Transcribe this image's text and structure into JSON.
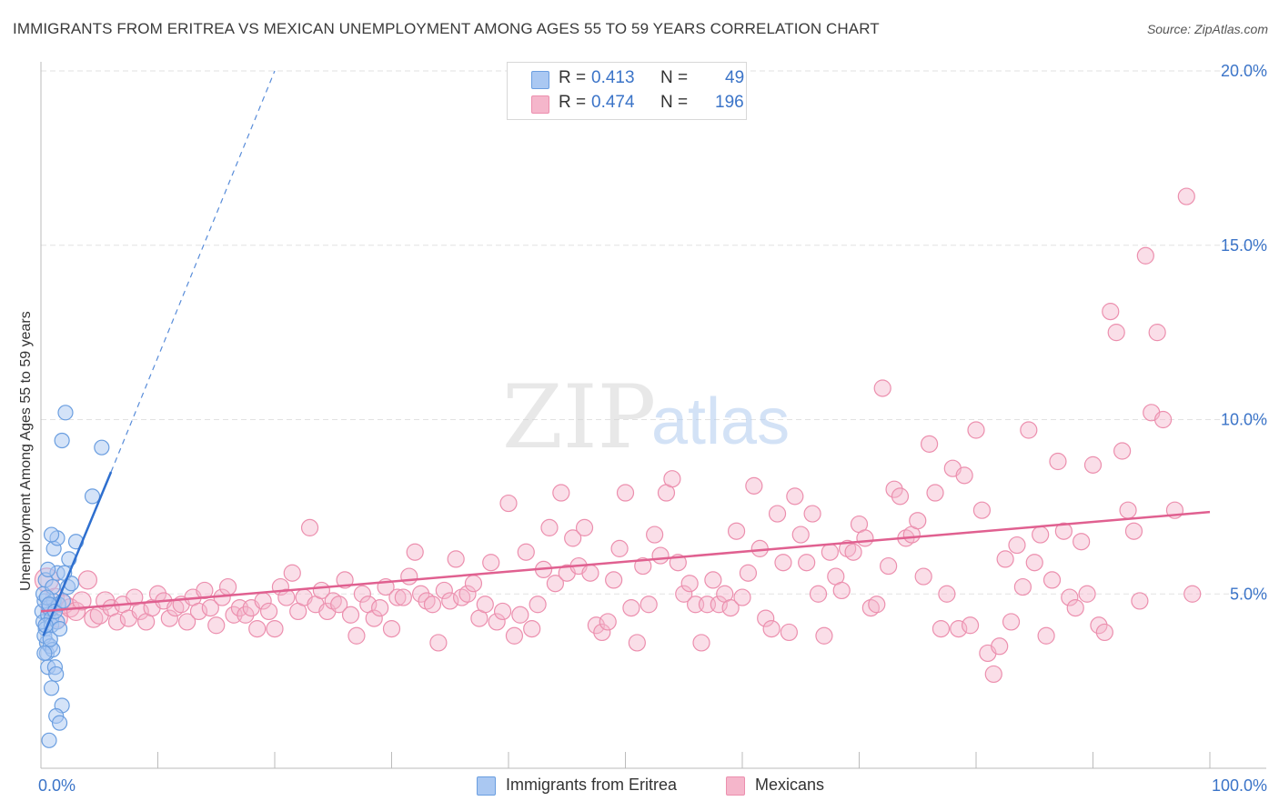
{
  "title": "IMMIGRANTS FROM ERITREA VS MEXICAN UNEMPLOYMENT AMONG AGES 55 TO 59 YEARS CORRELATION CHART",
  "source": "Source: ZipAtlas.com",
  "colors": {
    "blue_fill": "#aac8f2",
    "blue_stroke": "#6a9ee0",
    "blue_line": "#2e6fcf",
    "pink_fill": "#f5b6cb",
    "pink_stroke": "#ec8fae",
    "pink_line": "#e06090",
    "axis_label": "#3b74c8",
    "grid": "#e2e2e2"
  },
  "legend_top": {
    "rows": [
      {
        "r_label": "R =",
        "r_value": "0.413",
        "n_label": "N =",
        "n_value": "49"
      },
      {
        "r_label": "R =",
        "r_value": "0.474",
        "n_label": "N =",
        "n_value": "196"
      }
    ]
  },
  "legend_bottom": [
    "Immigrants from Eritrea",
    "Mexicans"
  ],
  "watermark": {
    "zip": "ZIP",
    "atlas": "atlas"
  },
  "chart_data": {
    "type": "scatter",
    "title": "IMMIGRANTS FROM ERITREA VS MEXICAN UNEMPLOYMENT AMONG AGES 55 TO 59 YEARS CORRELATION CHART",
    "xlabel": "",
    "ylabel": "Unemployment Among Ages 55 to 59 years",
    "xlim": [
      0,
      100
    ],
    "ylim": [
      0,
      20
    ],
    "x_tick_labels": [
      "0.0%",
      "100.0%"
    ],
    "y_ticks": [
      5,
      10,
      15,
      20
    ],
    "y_tick_labels": [
      "5.0%",
      "10.0%",
      "15.0%",
      "20.0%"
    ],
    "series": [
      {
        "name": "Immigrants from Eritrea",
        "color": "blue",
        "r": 0.413,
        "n": 49,
        "trend": {
          "x0": 0.2,
          "y0": 3.8,
          "x1": 6.0,
          "y1": 8.5,
          "dash_to_x": 20.0,
          "dash_to_y": 20.0
        },
        "points": [
          [
            0.1,
            4.5
          ],
          [
            0.2,
            4.2
          ],
          [
            0.3,
            4.8
          ],
          [
            0.4,
            4.0
          ],
          [
            0.5,
            3.6
          ],
          [
            0.6,
            4.4
          ],
          [
            0.2,
            5.0
          ],
          [
            0.4,
            5.4
          ],
          [
            0.7,
            4.6
          ],
          [
            0.9,
            4.3
          ],
          [
            0.3,
            3.8
          ],
          [
            0.5,
            3.3
          ],
          [
            0.8,
            3.5
          ],
          [
            1.0,
            3.4
          ],
          [
            0.6,
            2.9
          ],
          [
            1.2,
            2.9
          ],
          [
            1.3,
            2.7
          ],
          [
            0.9,
            2.3
          ],
          [
            1.8,
            1.8
          ],
          [
            1.3,
            1.5
          ],
          [
            1.6,
            1.3
          ],
          [
            0.7,
            0.8
          ],
          [
            0.9,
            4.1
          ],
          [
            1.4,
            4.2
          ],
          [
            1.1,
            4.8
          ],
          [
            1.5,
            4.7
          ],
          [
            1.0,
            5.2
          ],
          [
            1.4,
            5.6
          ],
          [
            2.3,
            5.2
          ],
          [
            2.0,
            5.6
          ],
          [
            2.4,
            6.0
          ],
          [
            1.1,
            6.3
          ],
          [
            1.4,
            6.6
          ],
          [
            0.9,
            6.7
          ],
          [
            3.0,
            6.5
          ],
          [
            4.4,
            7.8
          ],
          [
            5.2,
            9.2
          ],
          [
            1.8,
            9.4
          ],
          [
            2.1,
            10.2
          ],
          [
            0.5,
            4.9
          ],
          [
            0.7,
            4.7
          ],
          [
            1.2,
            4.5
          ],
          [
            0.4,
            4.1
          ],
          [
            0.8,
            3.7
          ],
          [
            1.6,
            4.0
          ],
          [
            0.3,
            3.3
          ],
          [
            1.9,
            4.8
          ],
          [
            2.6,
            5.3
          ],
          [
            0.6,
            5.7
          ]
        ]
      },
      {
        "name": "Mexicans",
        "color": "pink",
        "r": 0.474,
        "n": 196,
        "trend": {
          "x0": 0.0,
          "y0": 4.5,
          "x1": 100.0,
          "y1": 7.35
        },
        "points": [
          [
            0.5,
            5.4
          ],
          [
            0.8,
            4.6
          ],
          [
            1.2,
            4.9
          ],
          [
            1.5,
            4.3
          ],
          [
            2.0,
            4.7
          ],
          [
            2.5,
            4.6
          ],
          [
            3.0,
            4.5
          ],
          [
            3.5,
            4.8
          ],
          [
            4.0,
            5.4
          ],
          [
            4.5,
            4.3
          ],
          [
            5.0,
            4.4
          ],
          [
            5.5,
            4.8
          ],
          [
            6.0,
            4.6
          ],
          [
            6.5,
            4.2
          ],
          [
            7.0,
            4.7
          ],
          [
            7.5,
            4.3
          ],
          [
            8.0,
            4.9
          ],
          [
            8.5,
            4.5
          ],
          [
            9.0,
            4.2
          ],
          [
            9.5,
            4.6
          ],
          [
            10.0,
            5.0
          ],
          [
            10.5,
            4.8
          ],
          [
            11.0,
            4.3
          ],
          [
            11.5,
            4.6
          ],
          [
            12.0,
            4.7
          ],
          [
            12.5,
            4.2
          ],
          [
            13.0,
            4.9
          ],
          [
            13.5,
            4.5
          ],
          [
            14.0,
            5.1
          ],
          [
            14.5,
            4.6
          ],
          [
            15.0,
            4.1
          ],
          [
            15.5,
            4.9
          ],
          [
            16.0,
            5.2
          ],
          [
            16.5,
            4.4
          ],
          [
            17.0,
            4.6
          ],
          [
            17.5,
            4.4
          ],
          [
            18.0,
            4.6
          ],
          [
            18.5,
            4.0
          ],
          [
            19.0,
            4.8
          ],
          [
            19.5,
            4.5
          ],
          [
            20.0,
            4.0
          ],
          [
            20.5,
            5.2
          ],
          [
            21.0,
            4.9
          ],
          [
            21.5,
            5.6
          ],
          [
            22.0,
            4.5
          ],
          [
            22.5,
            4.9
          ],
          [
            23.0,
            6.9
          ],
          [
            23.5,
            4.7
          ],
          [
            24.0,
            5.1
          ],
          [
            24.5,
            4.5
          ],
          [
            25.0,
            4.8
          ],
          [
            25.5,
            4.7
          ],
          [
            26.0,
            5.4
          ],
          [
            26.5,
            4.4
          ],
          [
            27.0,
            3.8
          ],
          [
            27.5,
            5.0
          ],
          [
            28.0,
            4.7
          ],
          [
            28.5,
            4.3
          ],
          [
            29.0,
            4.6
          ],
          [
            29.5,
            5.2
          ],
          [
            30.0,
            4.0
          ],
          [
            30.5,
            4.9
          ],
          [
            31.0,
            4.9
          ],
          [
            31.5,
            5.5
          ],
          [
            32.0,
            6.2
          ],
          [
            32.5,
            5.0
          ],
          [
            33.0,
            4.8
          ],
          [
            33.5,
            4.7
          ],
          [
            34.0,
            3.6
          ],
          [
            34.5,
            5.1
          ],
          [
            35.0,
            4.8
          ],
          [
            35.5,
            6.0
          ],
          [
            36.0,
            4.9
          ],
          [
            36.5,
            5.0
          ],
          [
            37.0,
            5.3
          ],
          [
            37.5,
            4.3
          ],
          [
            38.0,
            4.7
          ],
          [
            38.5,
            5.9
          ],
          [
            39.0,
            4.2
          ],
          [
            39.5,
            4.5
          ],
          [
            40.0,
            7.6
          ],
          [
            40.5,
            3.8
          ],
          [
            41.0,
            4.4
          ],
          [
            41.5,
            6.2
          ],
          [
            42.0,
            4.0
          ],
          [
            42.5,
            4.7
          ],
          [
            43.0,
            5.7
          ],
          [
            43.5,
            6.9
          ],
          [
            44.0,
            5.3
          ],
          [
            44.5,
            7.9
          ],
          [
            45.0,
            5.6
          ],
          [
            45.5,
            6.6
          ],
          [
            46.0,
            5.8
          ],
          [
            46.5,
            6.9
          ],
          [
            47.0,
            5.6
          ],
          [
            47.5,
            4.1
          ],
          [
            48.0,
            3.9
          ],
          [
            48.5,
            4.2
          ],
          [
            49.0,
            5.4
          ],
          [
            49.5,
            6.3
          ],
          [
            50.0,
            7.9
          ],
          [
            50.5,
            4.6
          ],
          [
            51.0,
            3.6
          ],
          [
            51.5,
            5.8
          ],
          [
            52.0,
            4.7
          ],
          [
            52.5,
            6.7
          ],
          [
            53.0,
            6.1
          ],
          [
            53.5,
            7.9
          ],
          [
            54.0,
            8.3
          ],
          [
            54.5,
            5.9
          ],
          [
            55.0,
            5.0
          ],
          [
            55.5,
            5.3
          ],
          [
            56.0,
            4.7
          ],
          [
            56.5,
            3.6
          ],
          [
            57.0,
            4.7
          ],
          [
            57.5,
            5.4
          ],
          [
            58.0,
            4.7
          ],
          [
            58.5,
            5.0
          ],
          [
            59.0,
            4.6
          ],
          [
            59.5,
            6.8
          ],
          [
            60.0,
            4.9
          ],
          [
            60.5,
            5.6
          ],
          [
            61.0,
            8.1
          ],
          [
            61.5,
            6.3
          ],
          [
            62.0,
            4.3
          ],
          [
            62.5,
            4.0
          ],
          [
            63.0,
            7.3
          ],
          [
            63.5,
            5.9
          ],
          [
            64.0,
            3.9
          ],
          [
            64.5,
            7.8
          ],
          [
            65.0,
            6.7
          ],
          [
            65.5,
            5.9
          ],
          [
            66.0,
            7.3
          ],
          [
            66.5,
            5.0
          ],
          [
            67.0,
            3.8
          ],
          [
            67.5,
            6.2
          ],
          [
            68.0,
            5.5
          ],
          [
            68.5,
            5.1
          ],
          [
            69.0,
            6.3
          ],
          [
            69.5,
            6.2
          ],
          [
            70.0,
            7.0
          ],
          [
            70.5,
            6.6
          ],
          [
            71.0,
            4.6
          ],
          [
            71.5,
            4.7
          ],
          [
            72.0,
            10.9
          ],
          [
            72.5,
            5.8
          ],
          [
            73.0,
            8.0
          ],
          [
            73.5,
            7.8
          ],
          [
            74.0,
            6.6
          ],
          [
            74.5,
            6.7
          ],
          [
            75.0,
            7.1
          ],
          [
            75.5,
            5.5
          ],
          [
            76.0,
            9.3
          ],
          [
            76.5,
            7.9
          ],
          [
            77.0,
            4.0
          ],
          [
            77.5,
            5.0
          ],
          [
            78.0,
            8.6
          ],
          [
            78.5,
            4.0
          ],
          [
            79.0,
            8.4
          ],
          [
            79.5,
            4.1
          ],
          [
            80.0,
            9.7
          ],
          [
            80.5,
            7.4
          ],
          [
            81.0,
            3.3
          ],
          [
            81.5,
            2.7
          ],
          [
            82.0,
            3.5
          ],
          [
            82.5,
            6.0
          ],
          [
            83.0,
            4.2
          ],
          [
            83.5,
            6.4
          ],
          [
            84.0,
            5.2
          ],
          [
            84.5,
            9.7
          ],
          [
            85.0,
            5.9
          ],
          [
            85.5,
            6.7
          ],
          [
            86.0,
            3.8
          ],
          [
            86.5,
            5.4
          ],
          [
            87.0,
            8.8
          ],
          [
            87.5,
            6.8
          ],
          [
            88.0,
            4.9
          ],
          [
            88.5,
            4.6
          ],
          [
            89.0,
            6.5
          ],
          [
            89.5,
            5.0
          ],
          [
            90.0,
            8.7
          ],
          [
            90.5,
            4.1
          ],
          [
            91.0,
            3.9
          ],
          [
            91.5,
            13.1
          ],
          [
            92.0,
            12.5
          ],
          [
            92.5,
            9.1
          ],
          [
            93.0,
            7.4
          ],
          [
            93.5,
            6.8
          ],
          [
            94.0,
            4.8
          ],
          [
            94.5,
            14.7
          ],
          [
            95.0,
            10.2
          ],
          [
            95.5,
            12.5
          ],
          [
            96.0,
            10.0
          ],
          [
            97.0,
            7.4
          ],
          [
            98.0,
            16.4
          ],
          [
            98.5,
            5.0
          ]
        ]
      }
    ]
  }
}
